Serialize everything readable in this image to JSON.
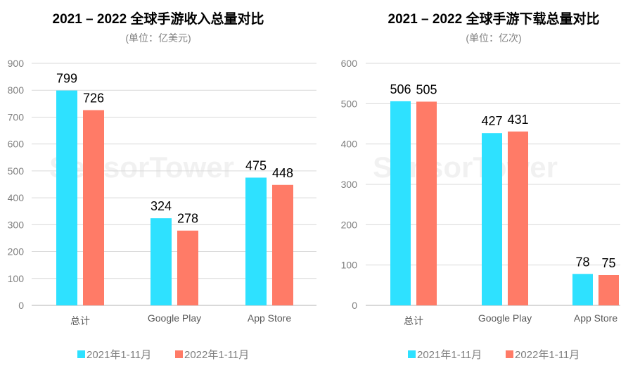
{
  "colors": {
    "2021": "#2EE1FF",
    "2022": "#FF7B67",
    "grid": "#d9d9d9"
  },
  "watermark": "SensorTower",
  "chart_data": [
    {
      "type": "bar",
      "title": "2021 – 2022 全球手游收入总量对比",
      "subtitle": "(单位：亿美元)",
      "categories": [
        "总计",
        "Google Play",
        "App Store"
      ],
      "series": [
        {
          "name": "2021年1-11月",
          "values": [
            799,
            324,
            475
          ]
        },
        {
          "name": "2022年1-11月",
          "values": [
            726,
            278,
            448
          ]
        }
      ],
      "ylim": [
        0,
        900
      ],
      "yticks": [
        0,
        100,
        200,
        300,
        400,
        500,
        600,
        700,
        800,
        900
      ],
      "grid": true,
      "legend": "bottom"
    },
    {
      "type": "bar",
      "title": "2021 – 2022 全球手游下载总量对比",
      "subtitle": "(单位：亿次)",
      "categories": [
        "总计",
        "Google Play",
        "App Store"
      ],
      "series": [
        {
          "name": "2021年1-11月",
          "values": [
            506,
            427,
            78
          ]
        },
        {
          "name": "2022年1-11月",
          "values": [
            505,
            431,
            75
          ]
        }
      ],
      "ylim": [
        0,
        600
      ],
      "yticks": [
        0,
        100,
        200,
        300,
        400,
        500,
        600
      ],
      "grid": true,
      "legend": "bottom"
    }
  ]
}
